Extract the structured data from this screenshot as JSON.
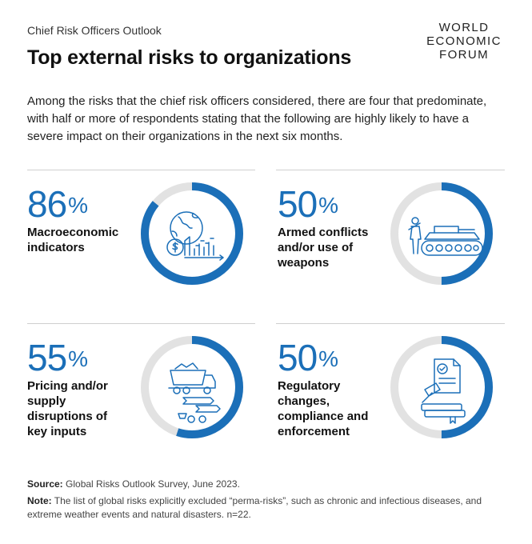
{
  "header": {
    "kicker": "Chief Risk Officers Outlook",
    "title": "Top external risks to organizations",
    "logo_lines": [
      "WORLD",
      "ECONOMIC",
      "FORUM"
    ]
  },
  "intro": "Among the risks that the chief risk officers considered, there are four that predominate, with half or more of respondents stating that the following are highly likely to have a severe impact on their organizations in the next six months.",
  "colors": {
    "accent": "#1b6fb8",
    "track": "#e2e2e2",
    "text": "#111111"
  },
  "chart_data": {
    "type": "pie",
    "unit": "%",
    "categories": [
      "Macroeconomic indicators",
      "Armed conflicts and/or use of weapons",
      "Pricing and/or supply disruptions of key inputs",
      "Regulatory changes, compliance and enforcement"
    ],
    "values": [
      86,
      50,
      55,
      50
    ],
    "icons": [
      "globe-dollar-chart-icon",
      "tank-soldier-icon",
      "truck-supply-icon",
      "gavel-document-icon"
    ]
  },
  "cards": [
    {
      "value": "86",
      "sign": "%",
      "label_lines": [
        "Macroeconomic",
        "indicators"
      ]
    },
    {
      "value": "50",
      "sign": "%",
      "label_lines": [
        "Armed conflicts",
        "and/or use of",
        "weapons"
      ]
    },
    {
      "value": "55",
      "sign": "%",
      "label_lines": [
        "Pricing and/or",
        "supply",
        "disruptions of",
        "key inputs"
      ]
    },
    {
      "value": "50",
      "sign": "%",
      "label_lines": [
        "Regulatory",
        "changes,",
        "compliance and",
        "enforcement"
      ]
    }
  ],
  "footer": {
    "source_label": "Source:",
    "source_text": " Global Risks Outlook Survey, June 2023.",
    "note_label": "Note:",
    "note_text": " The list of global risks explicitly excluded “perma-risks”, such as chronic and infectious diseases, and extreme weather events and natural disasters. n=22."
  }
}
